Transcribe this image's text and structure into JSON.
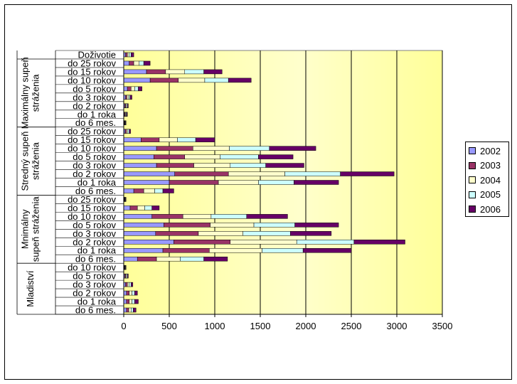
{
  "chart_data": {
    "type": "bar",
    "orientation": "horizontal",
    "stacked": true,
    "title": "",
    "xlabel": "",
    "ylabel": "",
    "xlim": [
      0,
      3500
    ],
    "x_ticks": [
      0,
      500,
      1000,
      1500,
      2000,
      2500,
      3000,
      3500
    ],
    "grid": "vertical",
    "legend_position": "right",
    "colors": {
      "2002": "#9999ff",
      "2003": "#993366",
      "2004": "#ffffcc",
      "2005": "#ccffff",
      "2006": "#660066",
      "plot_background": "#ffff99"
    },
    "series_names": [
      "2002",
      "2003",
      "2004",
      "2005",
      "2006"
    ],
    "groups": [
      {
        "name": "Doživotie",
        "label_lines": [],
        "categories": [
          {
            "label": "Doživotie",
            "values": [
              20,
              20,
              20,
              20,
              30
            ]
          }
        ]
      },
      {
        "name": "Maximálny supeň stráženia",
        "label_lines": [
          "Maximálny supeň",
          "stráženia"
        ],
        "categories": [
          {
            "label": "do 25 rokov",
            "values": [
              60,
              50,
              60,
              50,
              70
            ]
          },
          {
            "label": "do 15 rokov",
            "values": [
              250,
              210,
              210,
              210,
              200
            ]
          },
          {
            "label": "do 10 rokov",
            "values": [
              290,
              310,
              290,
              260,
              250
            ]
          },
          {
            "label": "do 5 rokov",
            "values": [
              40,
              40,
              40,
              40,
              40
            ]
          },
          {
            "label": "do 3 rokov",
            "values": [
              20,
              15,
              20,
              15,
              20
            ]
          },
          {
            "label": "do 2 rokov",
            "values": [
              10,
              10,
              10,
              10,
              10
            ]
          },
          {
            "label": "do 1 roka",
            "values": [
              8,
              8,
              8,
              8,
              8
            ]
          },
          {
            "label": "do 6 mes.",
            "values": [
              5,
              5,
              5,
              5,
              5
            ]
          }
        ]
      },
      {
        "name": "Stredný supeň stráženia",
        "label_lines": [
          "Stredný supeň",
          "stráženia"
        ],
        "categories": [
          {
            "label": "do 25 rokov",
            "values": [
              15,
              15,
              15,
              15,
              15
            ]
          },
          {
            "label": "do 15 rokov",
            "values": [
              190,
              200,
              200,
              200,
              210
            ]
          },
          {
            "label": "do 10 rokov",
            "values": [
              360,
              400,
              400,
              440,
              510
            ]
          },
          {
            "label": "do 5 rokov",
            "values": [
              330,
              340,
              390,
              420,
              380
            ]
          },
          {
            "label": "do 3 rokov",
            "values": [
              360,
              410,
              400,
              390,
              420
            ]
          },
          {
            "label": "do 2 rokov",
            "values": [
              560,
              590,
              620,
              610,
              590
            ]
          },
          {
            "label": "do 1 roka",
            "values": [
              500,
              540,
              440,
              390,
              490
            ]
          },
          {
            "label": "do 6 mes.",
            "values": [
              110,
              110,
              120,
              90,
              120
            ]
          }
        ]
      },
      {
        "name": "Mnimálny supeň stráženia",
        "label_lines": [
          "Mnimálny",
          "supeň stráženia"
        ],
        "categories": [
          {
            "label": "do 25 rokov",
            "values": [
              5,
              5,
              5,
              5,
              5
            ]
          },
          {
            "label": "do 15 rokov",
            "values": [
              70,
              80,
              80,
              80,
              80
            ]
          },
          {
            "label": "do 10 rokov",
            "values": [
              310,
              340,
              310,
              390,
              450
            ]
          },
          {
            "label": "do 5 rokov",
            "values": [
              440,
              510,
              480,
              450,
              480
            ]
          },
          {
            "label": "do 3 rokov",
            "values": [
              350,
              470,
              490,
              520,
              450
            ]
          },
          {
            "label": "do 2 rokov",
            "values": [
              550,
              620,
              730,
              630,
              560
            ]
          },
          {
            "label": "do 1 roka",
            "values": [
              430,
              510,
              580,
              450,
              530
            ]
          },
          {
            "label": "do 6 mes.",
            "values": [
              150,
              210,
              260,
              260,
              260
            ]
          }
        ]
      },
      {
        "name": "Mladiství",
        "label_lines": [
          "Mladiství"
        ],
        "categories": [
          {
            "label": "do 10 rokov",
            "values": [
              5,
              5,
              5,
              5,
              5
            ]
          },
          {
            "label": "do 5 rokov",
            "values": [
              10,
              10,
              10,
              10,
              10
            ]
          },
          {
            "label": "do 3 rokov",
            "values": [
              20,
              20,
              20,
              20,
              20
            ]
          },
          {
            "label": "do 2 rokov",
            "values": [
              30,
              30,
              30,
              30,
              30
            ]
          },
          {
            "label": "do 1 roka",
            "values": [
              30,
              30,
              30,
              30,
              40
            ]
          },
          {
            "label": "do 6 mes.",
            "values": [
              30,
              25,
              25,
              25,
              30
            ]
          }
        ]
      }
    ]
  }
}
